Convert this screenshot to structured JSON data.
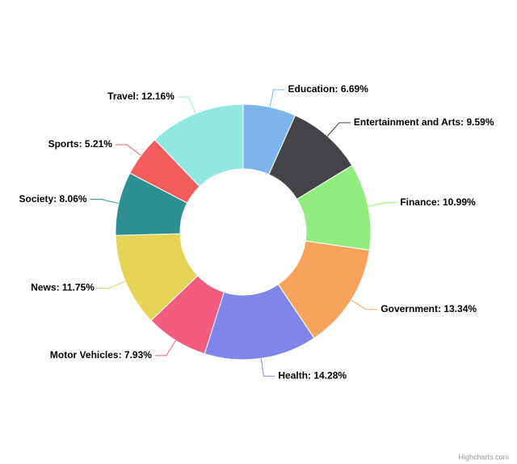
{
  "chart_data": {
    "type": "donut",
    "categories": [
      "Education",
      "Entertainment and Arts",
      "Finance",
      "Government",
      "Health",
      "Motor Vehicles",
      "News",
      "Society",
      "Sports",
      "Travel"
    ],
    "values": [
      6.69,
      9.59,
      10.99,
      13.34,
      14.28,
      7.93,
      11.75,
      8.06,
      5.21,
      12.16
    ],
    "value_labels": [
      "Education: 6.69%",
      "Entertainment and Arts: 9.59%",
      "Finance: 10.99%",
      "Government: 13.34%",
      "Health: 14.28%",
      "Motor Vehicles: 7.93%",
      "News: 11.75%",
      "Society: 8.06%",
      "Sports: 5.21%",
      "Travel: 12.16%"
    ],
    "colors": [
      "#7cb5ec",
      "#434348",
      "#90ed7d",
      "#f7a35c",
      "#8085e9",
      "#f15c80",
      "#e4d354",
      "#2b908f",
      "#f45b5b",
      "#91e8e1"
    ],
    "credits": "Highcharts.com"
  }
}
